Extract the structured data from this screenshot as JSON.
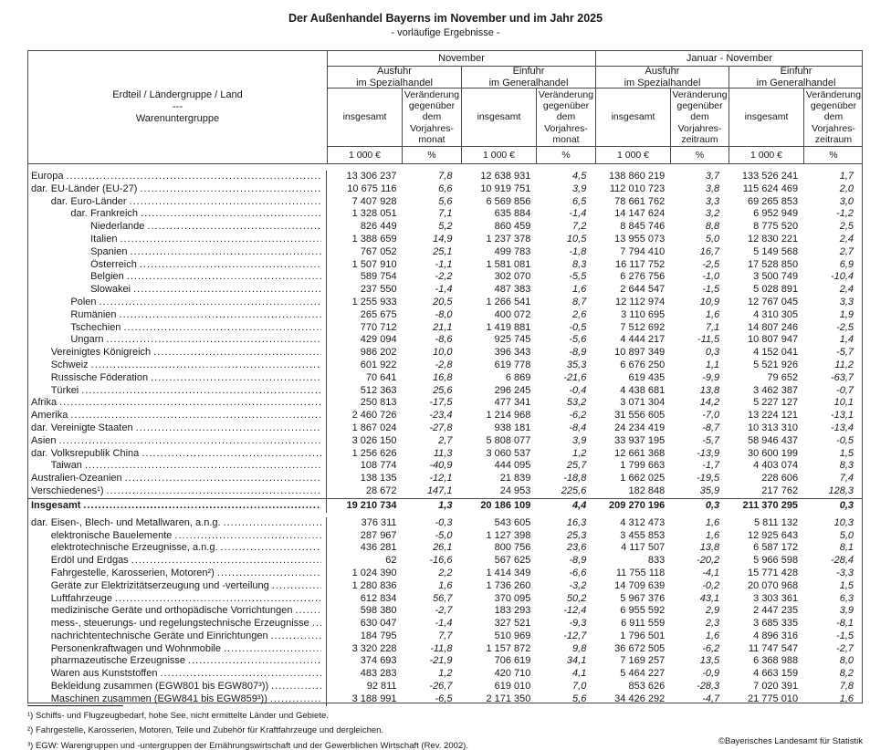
{
  "title": "Der Außenhandel Bayerns im November und im Jahr 2025",
  "subtitle": "- vorläufige Ergebnisse -",
  "table": {
    "stub_header_lines": [
      "Erdteil / Ländergruppe / Land",
      "---",
      "Warenuntergruppe"
    ],
    "periods": [
      "November",
      "Januar - November"
    ],
    "flows": [
      [
        "Ausfuhr",
        "im Spezialhandel"
      ],
      [
        "Einfuhr",
        "im Generalhandel"
      ],
      [
        "Ausfuhr",
        "im Spezialhandel"
      ],
      [
        "Einfuhr",
        "im Generalhandel"
      ]
    ],
    "measures": [
      [
        "insgesamt"
      ],
      [
        "Veränderung",
        "gegenüber",
        "dem",
        "Vorjahres-",
        "monat"
      ],
      [
        "insgesamt"
      ],
      [
        "Veränderung",
        "gegenüber",
        "dem",
        "Vorjahres-",
        "monat"
      ],
      [
        "insgesamt"
      ],
      [
        "Veränderung",
        "gegenüber",
        "dem",
        "Vorjahres-",
        "zeitraum"
      ],
      [
        "insgesamt"
      ],
      [
        "Veränderung",
        "gegenüber",
        "dem",
        "Vorjahres-",
        "zeitraum"
      ]
    ],
    "units": [
      "1 000 €",
      "%",
      "1 000 €",
      "%",
      "1 000 €",
      "%",
      "1 000 €",
      "%"
    ],
    "country_rows": [
      {
        "label": "Europa",
        "ind": 0,
        "v": [
          "13 306 237",
          "7,8",
          "12 638 931",
          "4,5",
          "138 860 219",
          "3,7",
          "133 526 241",
          "1,7"
        ]
      },
      {
        "prefix": "dar.",
        "label": "EU-Länder (EU-27)",
        "ind": 0,
        "v": [
          "10 675 116",
          "6,6",
          "10 919 751",
          "3,9",
          "112 010 723",
          "3,8",
          "115 624 469",
          "2,0"
        ]
      },
      {
        "prefix": "dar.",
        "label": "Euro-Länder",
        "ind": 1,
        "v": [
          "7 407 928",
          "5,6",
          "6 569 856",
          "6,5",
          "78 661 762",
          "3,3",
          "69 265 853",
          "3,0"
        ]
      },
      {
        "prefix": "dar.",
        "label": "Frankreich",
        "ind": 2,
        "v": [
          "1 328 051",
          "7,1",
          "635 884",
          "-1,4",
          "14 147 624",
          "3,2",
          "6 952 949",
          "-1,2"
        ]
      },
      {
        "label": "Niederlande",
        "ind": 3,
        "v": [
          "826 449",
          "5,2",
          "860 459",
          "7,2",
          "8 845 746",
          "8,8",
          "8 775 520",
          "2,5"
        ]
      },
      {
        "label": "Italien",
        "ind": 3,
        "v": [
          "1 388 659",
          "14,9",
          "1 237 378",
          "10,5",
          "13 955 073",
          "5,0",
          "12 830 221",
          "2,4"
        ]
      },
      {
        "label": "Spanien",
        "ind": 3,
        "v": [
          "767 052",
          "25,1",
          "499 783",
          "-1,8",
          "7 794 410",
          "16,7",
          "5 149 568",
          "2,7"
        ]
      },
      {
        "label": "Österreich",
        "ind": 3,
        "v": [
          "1 507 910",
          "-1,1",
          "1 581 081",
          "8,3",
          "16 117 752",
          "-2,5",
          "17 528 850",
          "6,9"
        ]
      },
      {
        "label": "Belgien",
        "ind": 3,
        "v": [
          "589 754",
          "-2,2",
          "302 070",
          "-5,5",
          "6 276 756",
          "-1,0",
          "3 500 749",
          "-10,4"
        ]
      },
      {
        "label": "Slowakei",
        "ind": 3,
        "v": [
          "237 550",
          "-1,4",
          "487 383",
          "1,6",
          "2 644 547",
          "-1,5",
          "5 028 891",
          "2,4"
        ]
      },
      {
        "label": "Polen",
        "ind": 2,
        "v": [
          "1 255 933",
          "20,5",
          "1 266 541",
          "8,7",
          "12 112 974",
          "10,9",
          "12 767 045",
          "3,3"
        ]
      },
      {
        "label": "Rumänien",
        "ind": 2,
        "v": [
          "265 675",
          "-8,0",
          "400 072",
          "2,6",
          "3 110 695",
          "1,6",
          "4 310 305",
          "1,9"
        ]
      },
      {
        "label": "Tschechien",
        "ind": 2,
        "v": [
          "770 712",
          "21,1",
          "1 419 881",
          "-0,5",
          "7 512 692",
          "7,1",
          "14 807 246",
          "-2,5"
        ]
      },
      {
        "label": "Ungarn",
        "ind": 2,
        "v": [
          "429 094",
          "-8,6",
          "925 745",
          "-5,6",
          "4 444 217",
          "-11,5",
          "10 807 947",
          "1,4"
        ]
      },
      {
        "label": "Vereinigtes Königreich",
        "ind": 1,
        "v": [
          "986 202",
          "10,0",
          "396 343",
          "-8,9",
          "10 897 349",
          "0,3",
          "4 152 041",
          "-5,7"
        ]
      },
      {
        "label": "Schweiz",
        "ind": 1,
        "v": [
          "601 922",
          "-2,8",
          "619 778",
          "35,3",
          "6 676 250",
          "1,1",
          "5 521 926",
          "11,2"
        ]
      },
      {
        "label": "Russische Föderation",
        "ind": 1,
        "v": [
          "70 641",
          "16,8",
          "6 869",
          "-21,6",
          "619 435",
          "-9,9",
          "79 652",
          "-63,7"
        ]
      },
      {
        "label": "Türkei",
        "ind": 1,
        "v": [
          "512 363",
          "25,6",
          "296 245",
          "-0,4",
          "4 438 681",
          "13,8",
          "3 462 387",
          "-0,7"
        ]
      },
      {
        "label": "Afrika",
        "ind": 0,
        "v": [
          "250 813",
          "-17,5",
          "477 341",
          "53,2",
          "3 071 304",
          "14,2",
          "5 227 127",
          "10,1"
        ]
      },
      {
        "label": "Amerika",
        "ind": 0,
        "v": [
          "2 460 726",
          "-23,4",
          "1 214 968",
          "-6,2",
          "31 556 605",
          "-7,0",
          "13 224 121",
          "-13,1"
        ]
      },
      {
        "prefix": "dar.",
        "label": "Vereinigte Staaten",
        "ind": 0,
        "v": [
          "1 867 024",
          "-27,8",
          "938 181",
          "-8,4",
          "24 234 419",
          "-8,7",
          "10 313 310",
          "-13,4"
        ]
      },
      {
        "label": "Asien",
        "ind": 0,
        "v": [
          "3 026 150",
          "2,7",
          "5 808 077",
          "3,9",
          "33 937 195",
          "-5,7",
          "58 946 437",
          "-0,5"
        ]
      },
      {
        "prefix": "dar.",
        "label": "Volksrepublik China",
        "ind": 0,
        "v": [
          "1 256 626",
          "11,3",
          "3 060 537",
          "1,2",
          "12 661 368",
          "-13,9",
          "30 600 199",
          "1,5"
        ]
      },
      {
        "label": "Taiwan",
        "ind": 1,
        "v": [
          "108 774",
          "-40,9",
          "444 095",
          "25,7",
          "1 799 663",
          "-1,7",
          "4 403 074",
          "8,3"
        ]
      },
      {
        "label": "Australien-Ozeanien",
        "ind": 0,
        "v": [
          "138 135",
          "-12,1",
          "21 839",
          "-18,8",
          "1 662 025",
          "-19,5",
          "228 606",
          "7,4"
        ]
      },
      {
        "label": "Verschiedenes¹)",
        "ind": 0,
        "v": [
          "28 672",
          "147,1",
          "24 953",
          "225,6",
          "182 848",
          "35,9",
          "217 762",
          "128,3"
        ]
      }
    ],
    "total_row": {
      "label": "Insgesamt",
      "ind": 0,
      "v": [
        "19 210 734",
        "1,3",
        "20 186 109",
        "4,4",
        "209 270 196",
        "0,3",
        "211 370 295",
        "0,3"
      ]
    },
    "goods_rows": [
      {
        "prefix": "dar.",
        "label": "Eisen-, Blech- und Metallwaren, a.n.g.",
        "ind": 0,
        "v": [
          "376 311",
          "-0,3",
          "543 605",
          "16,3",
          "4 312 473",
          "1,6",
          "5 811 132",
          "10,3"
        ]
      },
      {
        "label": "elektronische Bauelemente",
        "ind": 1,
        "v": [
          "287 967",
          "-5,0",
          "1 127 398",
          "25,3",
          "3 455 853",
          "1,6",
          "12 925 643",
          "5,0"
        ]
      },
      {
        "label": "elektrotechnische Erzeugnisse, a.n.g.",
        "ind": 1,
        "v": [
          "436 281",
          "26,1",
          "800 756",
          "23,6",
          "4 117 507",
          "13,8",
          "6 587 172",
          "8,1"
        ]
      },
      {
        "label": "Erdöl und Erdgas",
        "ind": 1,
        "v": [
          "62",
          "-16,6",
          "567 625",
          "-8,9",
          "833",
          "-20,2",
          "5 966 598",
          "-28,4"
        ]
      },
      {
        "label": "Fahrgestelle, Karosserien, Motoren²)",
        "ind": 1,
        "v": [
          "1 024 390",
          "2,2",
          "1 414 349",
          "-6,6",
          "11 755 118",
          "-4,1",
          "15 771 428",
          "-3,3"
        ]
      },
      {
        "label": "Geräte zur Elektrizitätserzeugung und -verteilung",
        "ind": 1,
        "v": [
          "1 280 836",
          "1,6",
          "1 736 260",
          "-3,2",
          "14 709 639",
          "-0,2",
          "20 070 968",
          "1,5"
        ]
      },
      {
        "label": "Luftfahrzeuge",
        "ind": 1,
        "v": [
          "612 834",
          "56,7",
          "370 095",
          "50,2",
          "5 967 376",
          "43,1",
          "3 303 361",
          "6,3"
        ]
      },
      {
        "label": "medizinische Geräte und orthopädische Vorrichtungen",
        "ind": 1,
        "v": [
          "598 380",
          "-2,7",
          "183 293",
          "-12,4",
          "6 955 592",
          "2,9",
          "2 447 235",
          "3,9"
        ]
      },
      {
        "label": "mess-, steuerungs- und regelungstechnische Erzeugnisse",
        "ind": 1,
        "v": [
          "630 047",
          "-1,4",
          "327 521",
          "-9,3",
          "6 911 559",
          "2,3",
          "3 685 335",
          "-8,1"
        ]
      },
      {
        "label": "nachrichtentechnische Geräte und Einrichtungen",
        "ind": 1,
        "v": [
          "184 795",
          "7,7",
          "510 969",
          "-12,7",
          "1 796 501",
          "1,6",
          "4 896 316",
          "-1,5"
        ]
      },
      {
        "label": "Personenkraftwagen und Wohnmobile",
        "ind": 1,
        "v": [
          "3 320 228",
          "-11,8",
          "1 157 872",
          "9,8",
          "36 672 505",
          "-6,2",
          "11 747 547",
          "-2,7"
        ]
      },
      {
        "label": "pharmazeutische Erzeugnisse",
        "ind": 1,
        "v": [
          "374 693",
          "-21,9",
          "706 619",
          "34,1",
          "7 169 257",
          "13,5",
          "6 368 988",
          "8,0"
        ]
      },
      {
        "label": "Waren aus Kunststoffen",
        "ind": 1,
        "v": [
          "483 283",
          "1,2",
          "420 710",
          "4,1",
          "5 464 227",
          "-0,9",
          "4 663 159",
          "8,2"
        ]
      },
      {
        "label": "Bekleidung zusammen (EGW801 bis EGW807³))",
        "ind": 1,
        "v": [
          "92 811",
          "-26,7",
          "619 010",
          "7,0",
          "853 626",
          "-28,3",
          "7 020 391",
          "7,8"
        ]
      },
      {
        "label": "Maschinen zusammen (EGW841 bis EGW859³))",
        "ind": 1,
        "v": [
          "3 188 991",
          "-6,5",
          "2 171 350",
          "5,6",
          "34 426 292",
          "-4,7",
          "21 775 010",
          "1,6"
        ]
      }
    ],
    "footnotes": [
      "¹) Schiffs- und Flugzeugbedarf, hohe See, nicht ermittelte Länder und Gebiete.",
      "²) Fahrgestelle, Karosserien, Motoren, Teile und Zubehör für Kraftfahrzeuge und dergleichen.",
      "³) EGW: Warengruppen und -untergruppen der Ernährungswirtschaft und der Gewerblichen Wirtschaft (Rev. 2002)."
    ],
    "copyright": "©Bayerisches Landesamt für Statistik"
  }
}
